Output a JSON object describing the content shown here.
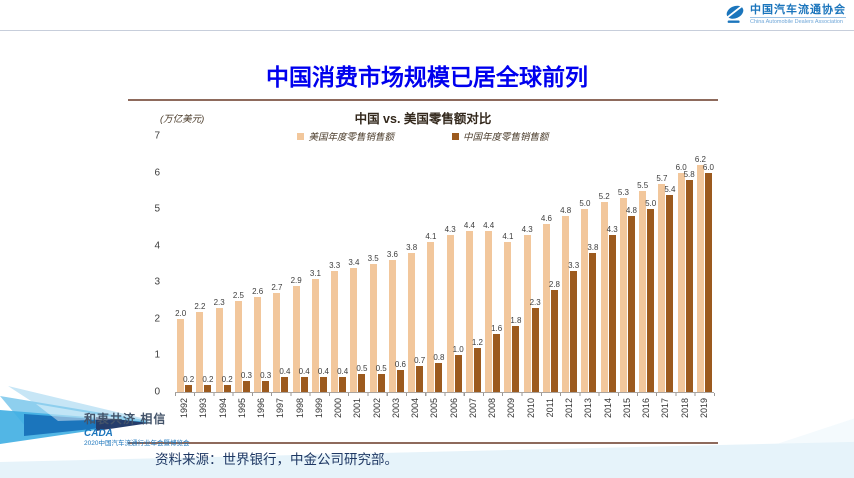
{
  "title": "中国消费市场规模已居全球前列",
  "source": "资料来源：世界银行，中金公司研究部。",
  "header": {
    "logo_cn": "中国汽车流通协会",
    "logo_en": "China Automobile Dealers Association"
  },
  "footer_logo": {
    "slogan": "和衷共济 相信",
    "org": "CADA",
    "event": "2020中国汽车流通行业年会暨博览会"
  },
  "colors": {
    "title_blue": "#0000ee",
    "rule_brown": "#8e6a5c",
    "source_navy": "#1f3864",
    "us_bar": "#f2c79c",
    "cn_bar": "#9c5a1e"
  },
  "chart_data": {
    "type": "bar",
    "title": "中国 vs. 美国零售额对比",
    "unit_label": "(万亿美元)",
    "xlabel": "",
    "ylabel": "万亿美元",
    "ylim": [
      0,
      7
    ],
    "yticks": [
      0,
      1,
      2,
      3,
      4,
      5,
      6,
      7
    ],
    "grid": false,
    "legend_position": "top",
    "categories": [
      "1992",
      "1993",
      "1994",
      "1995",
      "1996",
      "1997",
      "1998",
      "1999",
      "2000",
      "2001",
      "2002",
      "2003",
      "2004",
      "2005",
      "2006",
      "2007",
      "2008",
      "2009",
      "2010",
      "2011",
      "2012",
      "2013",
      "2014",
      "2015",
      "2016",
      "2017",
      "2018",
      "2019"
    ],
    "series": [
      {
        "name": "美国年度零售销售额",
        "color": "#f2c79c",
        "values": [
          2.0,
          2.2,
          2.3,
          2.5,
          2.6,
          2.7,
          2.9,
          3.1,
          3.3,
          3.4,
          3.5,
          3.6,
          3.8,
          4.1,
          4.3,
          4.4,
          4.4,
          4.1,
          4.3,
          4.6,
          4.8,
          5.0,
          5.2,
          5.3,
          5.5,
          5.7,
          6.0,
          6.2
        ]
      },
      {
        "name": "中国年度零售销售额",
        "color": "#9c5a1e",
        "values": [
          0.2,
          0.2,
          0.2,
          0.3,
          0.3,
          0.4,
          0.4,
          0.4,
          0.4,
          0.5,
          0.5,
          0.6,
          0.7,
          0.8,
          1.0,
          1.2,
          1.6,
          1.8,
          2.3,
          2.8,
          3.3,
          3.8,
          4.3,
          4.8,
          5.0,
          5.4,
          5.8,
          6.0
        ]
      }
    ]
  }
}
